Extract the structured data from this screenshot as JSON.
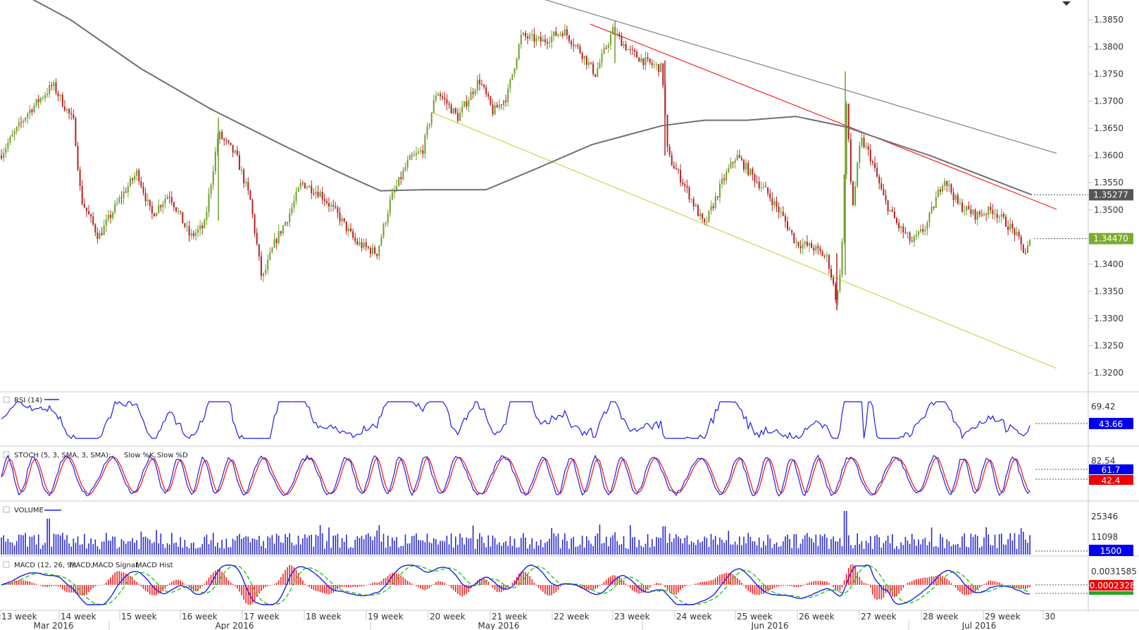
{
  "chart_data": {
    "type": "candlestick",
    "price_axis": {
      "ticks": [
        "1.3850",
        "1.3800",
        "1.3750",
        "1.3700",
        "1.3650",
        "1.3600",
        "1.3550",
        "1.3500",
        "1.3450",
        "1.3400",
        "1.3350",
        "1.3300",
        "1.3250",
        "1.3200"
      ],
      "ylim": [
        1.3185,
        1.388
      ]
    },
    "tags": {
      "ma_last": {
        "value": "1.35277",
        "price": 1.35277,
        "color": "#555555"
      },
      "last_price": {
        "value": "1.34470",
        "price": 1.3447,
        "color": "#7cab2e"
      }
    },
    "moving_average_color": "#707070",
    "trendlines": [
      {
        "color": "#808080",
        "points": [
          [
            740,
            1.39
          ],
          [
            1500,
            1.3604
          ]
        ]
      },
      {
        "color": "#ff2020",
        "points": [
          [
            838,
            1.3842
          ],
          [
            1500,
            1.3501
          ]
        ]
      },
      {
        "color": "#c8d850",
        "points": [
          [
            612,
            1.368
          ],
          [
            1500,
            1.3208
          ]
        ]
      }
    ],
    "candles": {
      "up_color": "#6e9e2a",
      "down_color": "#b22222",
      "approx_path": [
        [
          0,
          1.36
        ],
        [
          40,
          1.368
        ],
        [
          75,
          1.373
        ],
        [
          105,
          1.366
        ],
        [
          115,
          1.352
        ],
        [
          140,
          1.345
        ],
        [
          170,
          1.352
        ],
        [
          195,
          1.357
        ],
        [
          215,
          1.349
        ],
        [
          240,
          1.353
        ],
        [
          270,
          1.345
        ],
        [
          290,
          1.347
        ],
        [
          310,
          1.364
        ],
        [
          335,
          1.36
        ],
        [
          355,
          1.352
        ],
        [
          372,
          1.337
        ],
        [
          390,
          1.344
        ],
        [
          410,
          1.349
        ],
        [
          428,
          1.355
        ],
        [
          455,
          1.353
        ],
        [
          480,
          1.349
        ],
        [
          505,
          1.344
        ],
        [
          535,
          1.342
        ],
        [
          555,
          1.352
        ],
        [
          580,
          1.359
        ],
        [
          600,
          1.361
        ],
        [
          620,
          1.372
        ],
        [
          650,
          1.367
        ],
        [
          680,
          1.374
        ],
        [
          700,
          1.368
        ],
        [
          720,
          1.371
        ],
        [
          740,
          1.382
        ],
        [
          770,
          1.381
        ],
        [
          800,
          1.383
        ],
        [
          825,
          1.379
        ],
        [
          845,
          1.375
        ],
        [
          870,
          1.383
        ],
        [
          895,
          1.379
        ],
        [
          920,
          1.377
        ],
        [
          940,
          1.376
        ],
        [
          948,
          1.36
        ],
        [
          970,
          1.355
        ],
        [
          985,
          1.351
        ],
        [
          1000,
          1.347
        ],
        [
          1025,
          1.355
        ],
        [
          1045,
          1.36
        ],
        [
          1070,
          1.356
        ],
        [
          1090,
          1.353
        ],
        [
          1110,
          1.349
        ],
        [
          1130,
          1.344
        ],
        [
          1155,
          1.343
        ],
        [
          1175,
          1.341
        ],
        [
          1188,
          1.333
        ],
        [
          1195,
          1.342
        ],
        [
          1202,
          1.37
        ],
        [
          1210,
          1.35
        ],
        [
          1222,
          1.363
        ],
        [
          1235,
          1.36
        ],
        [
          1255,
          1.352
        ],
        [
          1275,
          1.347
        ],
        [
          1295,
          1.344
        ],
        [
          1315,
          1.347
        ],
        [
          1340,
          1.356
        ],
        [
          1360,
          1.351
        ],
        [
          1385,
          1.349
        ],
        [
          1410,
          1.35
        ],
        [
          1440,
          1.346
        ],
        [
          1455,
          1.342
        ],
        [
          1465,
          1.3447
        ]
      ]
    },
    "moving_average_path": [
      [
        0,
        1.392
      ],
      [
        100,
        1.385
      ],
      [
        200,
        1.376
      ],
      [
        300,
        1.3685
      ],
      [
        400,
        1.362
      ],
      [
        480,
        1.357
      ],
      [
        540,
        1.3535
      ],
      [
        600,
        1.3537
      ],
      [
        690,
        1.3537
      ],
      [
        760,
        1.3575
      ],
      [
        840,
        1.362
      ],
      [
        940,
        1.3655
      ],
      [
        1000,
        1.3665
      ],
      [
        1060,
        1.3665
      ],
      [
        1130,
        1.3672
      ],
      [
        1200,
        1.3653
      ],
      [
        1260,
        1.3626
      ],
      [
        1320,
        1.36
      ],
      [
        1380,
        1.357
      ],
      [
        1440,
        1.354
      ],
      [
        1465,
        1.35277
      ]
    ],
    "x_axis": {
      "weeks": [
        {
          "label": "13 week",
          "x": 2
        },
        {
          "label": "14 week",
          "x": 86
        },
        {
          "label": "15 week",
          "x": 172
        },
        {
          "label": "16 week",
          "x": 258
        },
        {
          "label": "17 week",
          "x": 346
        },
        {
          "label": "18 week",
          "x": 434
        },
        {
          "label": "19 week",
          "x": 522
        },
        {
          "label": "20 week",
          "x": 610
        },
        {
          "label": "21 week",
          "x": 698
        },
        {
          "label": "22 week",
          "x": 786
        },
        {
          "label": "23 week",
          "x": 872
        },
        {
          "label": "24 week",
          "x": 960
        },
        {
          "label": "25 week",
          "x": 1046
        },
        {
          "label": "26 week",
          "x": 1134
        },
        {
          "label": "27 week",
          "x": 1222
        },
        {
          "label": "28 week",
          "x": 1310
        },
        {
          "label": "29 week",
          "x": 1398
        },
        {
          "label": "30",
          "x": 1483
        }
      ],
      "months": [
        {
          "label": "Mar 2016",
          "x": 76
        },
        {
          "label": "Apr 2016",
          "x": 333
        },
        {
          "label": "May 2016",
          "x": 708
        },
        {
          "label": "Jun 2016",
          "x": 1093
        },
        {
          "label": "Jul 2016",
          "x": 1390
        }
      ]
    },
    "panels": [
      {
        "id": "rsi",
        "title": "RSI (14)",
        "line_color": "#1e1ee6",
        "ticks": [
          "69.42"
        ],
        "tag": {
          "value": "43.66",
          "bg": "#0000ee",
          "fg": "#ffffff"
        },
        "ylim": [
          25,
          80
        ],
        "last": 43.66
      },
      {
        "id": "stoch",
        "title": "STOCH (5, 3, SMA, 3, SMA):",
        "k_label": "Slow %K,",
        "d_label": "Slow %D",
        "k_color": "#1e1ee6",
        "d_color": "#ee1111",
        "ticks": [
          "82.54"
        ],
        "tag_k": {
          "value": "61.7",
          "bg": "#0000ee",
          "fg": "#ffffff"
        },
        "tag_d": {
          "value": "42.4",
          "bg": "#ee0000",
          "fg": "#ffffff"
        },
        "ylim": [
          0,
          100
        ]
      },
      {
        "id": "volume",
        "title": "VOLUME",
        "bar_color": "#2a2ad0",
        "ticks": [
          "25346",
          "11098"
        ],
        "tag": {
          "value": "1500",
          "bg": "#0000ee",
          "fg": "#ffffff"
        },
        "ylim": [
          0,
          42000
        ]
      },
      {
        "id": "macd",
        "title": "MACD (12, 26, 9):",
        "macd_label": "MACD,",
        "signal_label": "MACD Signal,",
        "hist_label": "MACD Hist",
        "macd_color": "#1e1ee6",
        "signal_color": "#22cc22",
        "hist_color": "#ee2222",
        "ticks": [
          "0.0031585"
        ],
        "tag": {
          "value": "-0.0002328",
          "bg": "#ee0000",
          "fg": "#ffffff"
        },
        "tag_signal_color": "#22aa22"
      }
    ]
  }
}
